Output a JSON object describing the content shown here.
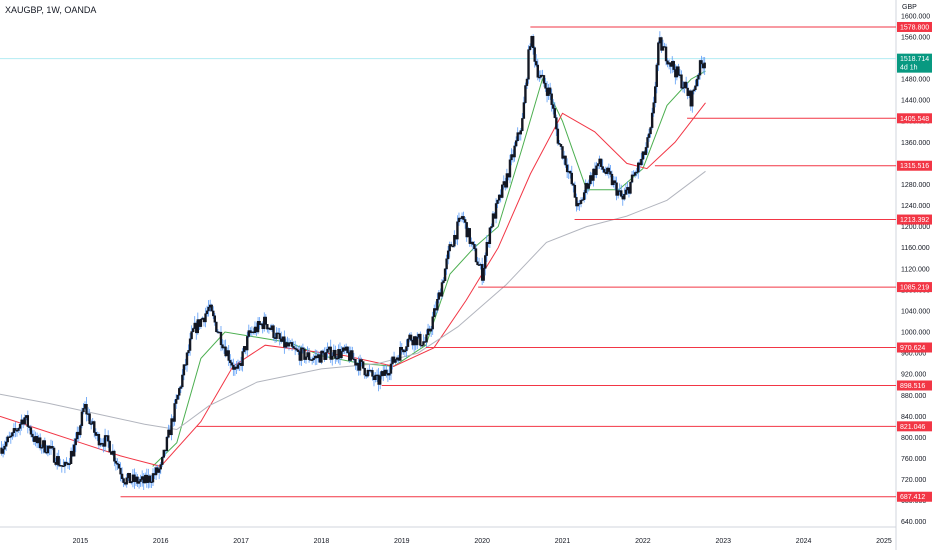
{
  "header": {
    "symbol_label": "XAUGBP, 1W, OANDA",
    "currency": "GBP"
  },
  "colors": {
    "candle_body": "#131722",
    "candle_wick": "#5b9cf6",
    "level_line": "#f23645",
    "ma_fast": "#4caf50",
    "ma_medium": "#f23645",
    "ma_slow": "#b2b5be",
    "price_tag": "#089981",
    "grid_axis": "#d1d4dc",
    "crosshair": "#b2ebf2"
  },
  "chart_data": {
    "type": "candlestick",
    "title": "",
    "xlabel": "",
    "ylabel": "",
    "ylim": [
      630,
      1630
    ],
    "xlim": [
      2014.0,
      2025.15
    ],
    "x_ticks": [
      2015,
      2016,
      2017,
      2018,
      2019,
      2020,
      2021,
      2022,
      2023,
      2024,
      2025
    ],
    "x_tick_labels": [
      "2015",
      "2016",
      "2017",
      "2018",
      "2019",
      "2020",
      "2021",
      "2022",
      "2023",
      "2024",
      "2025"
    ],
    "y_ticks": [
      640,
      680,
      720,
      760,
      800,
      840,
      880,
      920,
      960,
      1000,
      1040,
      1080,
      1120,
      1160,
      1200,
      1240,
      1280,
      1320,
      1360,
      1400,
      1440,
      1480,
      1520,
      1560,
      1600
    ],
    "y_tick_labels": [
      "640.000",
      "680.000",
      "720.000",
      "760.000",
      "800.000",
      "840.000",
      "880.000",
      "920.000",
      "960.000",
      "1000.000",
      "1040.000",
      "1080.000",
      "1120.000",
      "1160.000",
      "1200.000",
      "1240.000",
      "1280.000",
      "1320.000",
      "1360.000",
      "1400.000",
      "1440.000",
      "1480.000",
      "1520.000",
      "1560.000",
      "1600.000"
    ],
    "current_price": {
      "value": 1518.714,
      "label": "1518.714",
      "countdown": "4d 1h"
    },
    "levels": [
      {
        "value": 1578.8,
        "label": "1578.800",
        "start": 2020.6
      },
      {
        "value": 1405.548,
        "label": "1405.548",
        "start": 2022.55
      },
      {
        "value": 1315.516,
        "label": "1315.516",
        "start": 2022.15
      },
      {
        "value": 1213.392,
        "label": "1213.392",
        "start": 2021.15
      },
      {
        "value": 1085.219,
        "label": "1085.219",
        "start": 2019.95
      },
      {
        "value": 970.624,
        "label": "970.624",
        "start": 2019.3
      },
      {
        "value": 898.516,
        "label": "898.516",
        "start": 2018.75
      },
      {
        "value": 821.046,
        "label": "821.046",
        "start": 2016.45
      },
      {
        "value": 687.412,
        "label": "687.412",
        "start": 2015.5
      }
    ],
    "price_path": [
      [
        2014.0,
        780
      ],
      [
        2014.15,
        800
      ],
      [
        2014.3,
        840
      ],
      [
        2014.45,
        790
      ],
      [
        2014.6,
        780
      ],
      [
        2014.8,
        740
      ],
      [
        2014.95,
        790
      ],
      [
        2015.05,
        860
      ],
      [
        2015.2,
        800
      ],
      [
        2015.35,
        790
      ],
      [
        2015.55,
        720
      ],
      [
        2015.8,
        715
      ],
      [
        2016.0,
        740
      ],
      [
        2016.2,
        870
      ],
      [
        2016.4,
        1000
      ],
      [
        2016.6,
        1045
      ],
      [
        2016.8,
        970
      ],
      [
        2016.95,
        920
      ],
      [
        2017.1,
        995
      ],
      [
        2017.3,
        1020
      ],
      [
        2017.5,
        980
      ],
      [
        2017.7,
        960
      ],
      [
        2017.9,
        950
      ],
      [
        2018.1,
        960
      ],
      [
        2018.3,
        960
      ],
      [
        2018.5,
        935
      ],
      [
        2018.7,
        905
      ],
      [
        2018.9,
        945
      ],
      [
        2019.1,
        990
      ],
      [
        2019.3,
        980
      ],
      [
        2019.45,
        1060
      ],
      [
        2019.6,
        1160
      ],
      [
        2019.75,
        1220
      ],
      [
        2019.9,
        1150
      ],
      [
        2020.0,
        1110
      ],
      [
        2020.1,
        1200
      ],
      [
        2020.3,
        1290
      ],
      [
        2020.5,
        1400
      ],
      [
        2020.6,
        1560
      ],
      [
        2020.7,
        1490
      ],
      [
        2020.85,
        1450
      ],
      [
        2020.95,
        1360
      ],
      [
        2021.05,
        1320
      ],
      [
        2021.2,
        1230
      ],
      [
        2021.3,
        1280
      ],
      [
        2021.45,
        1320
      ],
      [
        2021.6,
        1290
      ],
      [
        2021.75,
        1250
      ],
      [
        2021.9,
        1300
      ],
      [
        2022.0,
        1330
      ],
      [
        2022.1,
        1380
      ],
      [
        2022.2,
        1550
      ],
      [
        2022.35,
        1510
      ],
      [
        2022.5,
        1470
      ],
      [
        2022.6,
        1440
      ],
      [
        2022.7,
        1500
      ],
      [
        2022.78,
        1519
      ]
    ],
    "series": [
      {
        "name": "",
        "role": "fast",
        "points": [
          [
            2015.9,
            745
          ],
          [
            2016.2,
            790
          ],
          [
            2016.5,
            950
          ],
          [
            2016.8,
            1000
          ],
          [
            2017.2,
            990
          ],
          [
            2017.6,
            980
          ],
          [
            2018.0,
            955
          ],
          [
            2018.5,
            940
          ],
          [
            2018.9,
            935
          ],
          [
            2019.3,
            975
          ],
          [
            2019.6,
            1110
          ],
          [
            2019.9,
            1160
          ],
          [
            2020.2,
            1200
          ],
          [
            2020.5,
            1350
          ],
          [
            2020.75,
            1480
          ],
          [
            2021.0,
            1400
          ],
          [
            2021.3,
            1270
          ],
          [
            2021.7,
            1270
          ],
          [
            2022.0,
            1310
          ],
          [
            2022.3,
            1430
          ],
          [
            2022.6,
            1480
          ],
          [
            2022.78,
            1495
          ]
        ]
      },
      {
        "name": "",
        "role": "medium",
        "points": [
          [
            2014.0,
            840
          ],
          [
            2014.5,
            815
          ],
          [
            2015.0,
            790
          ],
          [
            2015.5,
            765
          ],
          [
            2016.0,
            745
          ],
          [
            2016.5,
            830
          ],
          [
            2016.9,
            935
          ],
          [
            2017.3,
            975
          ],
          [
            2017.8,
            965
          ],
          [
            2018.3,
            955
          ],
          [
            2018.9,
            935
          ],
          [
            2019.4,
            970
          ],
          [
            2019.8,
            1060
          ],
          [
            2020.2,
            1160
          ],
          [
            2020.6,
            1300
          ],
          [
            2021.0,
            1415
          ],
          [
            2021.4,
            1380
          ],
          [
            2021.8,
            1320
          ],
          [
            2022.05,
            1310
          ],
          [
            2022.4,
            1360
          ],
          [
            2022.78,
            1435
          ]
        ]
      },
      {
        "name": "",
        "role": "slow",
        "points": [
          [
            2014.0,
            882
          ],
          [
            2014.6,
            865
          ],
          [
            2015.2,
            845
          ],
          [
            2015.8,
            825
          ],
          [
            2016.2,
            815
          ],
          [
            2016.6,
            860
          ],
          [
            2017.2,
            905
          ],
          [
            2018.0,
            930
          ],
          [
            2018.7,
            940
          ],
          [
            2019.2,
            960
          ],
          [
            2019.7,
            1010
          ],
          [
            2020.3,
            1090
          ],
          [
            2020.8,
            1170
          ],
          [
            2021.3,
            1200
          ],
          [
            2021.8,
            1220
          ],
          [
            2022.3,
            1250
          ],
          [
            2022.78,
            1305
          ]
        ]
      }
    ]
  }
}
